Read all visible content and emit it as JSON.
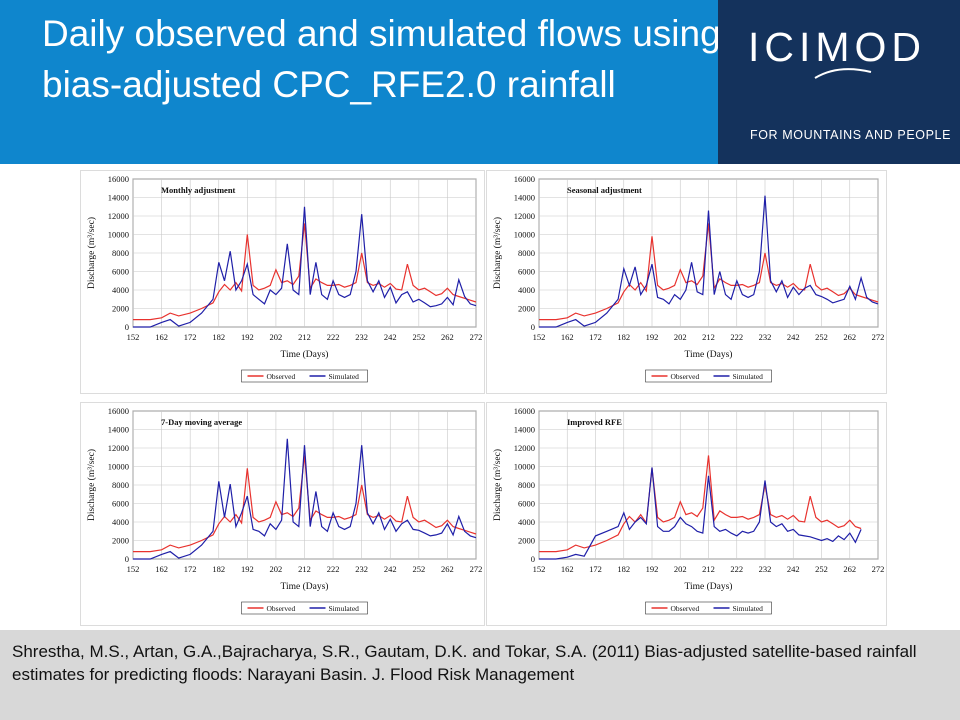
{
  "header": {
    "title": "Daily observed and simulated flows using bias-adjusted CPC_RFE2.0 rainfall"
  },
  "logo": {
    "wordmark": "ICIMOD",
    "tagline": "FOR MOUNTAINS AND PEOPLE"
  },
  "footer": {
    "citation": "Shrestha, M.S., Artan, G.A.,Bajracharya, S.R., Gautam, D.K. and Tokar, S.A. (2011) Bias-adjusted satellite-based rainfall estimates for predicting floods: Narayani Basin. J. Flood Risk Management"
  },
  "colors": {
    "header_bg": "#0f86cd",
    "logo_bg": "#14325c",
    "observed": "#e8322e",
    "simulated": "#1f1fa8"
  },
  "chart_data": [
    {
      "type": "line",
      "title": "Monthly adjustment",
      "xlabel": "Time (Days)",
      "ylabel": "Discharge (m³/sec)",
      "xlim": [
        152,
        272
      ],
      "ylim": [
        0,
        16000
      ],
      "xticks": [
        152,
        162,
        172,
        182,
        192,
        202,
        212,
        222,
        232,
        242,
        252,
        262,
        272
      ],
      "yticks": [
        0,
        2000,
        4000,
        6000,
        8000,
        10000,
        12000,
        14000,
        16000
      ],
      "grid": true,
      "legend": "bottom",
      "series": [
        {
          "name": "Observed",
          "color": "#e8322e",
          "x": [
            152,
            158,
            162,
            165,
            168,
            172,
            176,
            180,
            182,
            184,
            186,
            188,
            190,
            192,
            194,
            196,
            198,
            200,
            202,
            204,
            206,
            208,
            210,
            212,
            214,
            216,
            218,
            220,
            222,
            224,
            226,
            228,
            230,
            232,
            234,
            236,
            238,
            240,
            242,
            244,
            246,
            248,
            250,
            252,
            254,
            256,
            258,
            260,
            262,
            264,
            266,
            268,
            270,
            272
          ],
          "y": [
            800,
            800,
            1000,
            1500,
            1200,
            1500,
            2000,
            2600,
            3800,
            4600,
            4000,
            4800,
            3900,
            10000,
            4500,
            4000,
            4200,
            4500,
            6200,
            4800,
            5000,
            4600,
            5500,
            11200,
            4200,
            5200,
            4800,
            4500,
            4500,
            4600,
            4300,
            4500,
            4800,
            8000,
            4800,
            4500,
            4700,
            4300,
            4700,
            4100,
            4000,
            6800,
            4500,
            4000,
            4200,
            3800,
            3400,
            3600,
            4200,
            3500,
            3300,
            3100,
            2900,
            2700
          ]
        },
        {
          "name": "Simulated",
          "color": "#1f1fa8",
          "x": [
            152,
            158,
            162,
            165,
            168,
            172,
            176,
            180,
            182,
            184,
            186,
            188,
            190,
            192,
            194,
            196,
            198,
            200,
            202,
            204,
            206,
            208,
            210,
            212,
            214,
            216,
            218,
            220,
            222,
            224,
            226,
            228,
            230,
            232,
            234,
            236,
            238,
            240,
            242,
            244,
            246,
            248,
            250,
            252,
            254,
            256,
            258,
            260,
            262,
            264,
            266,
            268,
            270,
            272
          ],
          "y": [
            0,
            0,
            500,
            800,
            100,
            500,
            1500,
            3000,
            7000,
            5000,
            8200,
            4000,
            5000,
            6800,
            3500,
            3000,
            2500,
            4000,
            3500,
            4200,
            9000,
            4000,
            3500,
            13000,
            3500,
            7000,
            3500,
            3000,
            5000,
            3500,
            3200,
            3500,
            6000,
            12200,
            5000,
            3800,
            5000,
            3200,
            4300,
            2600,
            3500,
            3800,
            2700,
            3000,
            2600,
            2200,
            2300,
            2500,
            3200,
            2400,
            5100,
            3300,
            2500,
            2300
          ]
        }
      ]
    },
    {
      "type": "line",
      "title": "Seasonal adjustment",
      "xlabel": "Time (Days)",
      "ylabel": "Discharge (m³/sec)",
      "xlim": [
        152,
        272
      ],
      "ylim": [
        0,
        16000
      ],
      "xticks": [
        152,
        162,
        172,
        182,
        192,
        202,
        212,
        222,
        232,
        242,
        252,
        262,
        272
      ],
      "yticks": [
        0,
        2000,
        4000,
        6000,
        8000,
        10000,
        12000,
        14000,
        16000
      ],
      "grid": true,
      "legend": "bottom",
      "series": [
        {
          "name": "Observed",
          "color": "#e8322e",
          "x": [
            152,
            158,
            162,
            165,
            168,
            172,
            176,
            180,
            182,
            184,
            186,
            188,
            190,
            192,
            194,
            196,
            198,
            200,
            202,
            204,
            206,
            208,
            210,
            212,
            214,
            216,
            218,
            220,
            222,
            224,
            226,
            228,
            230,
            232,
            234,
            236,
            238,
            240,
            242,
            244,
            246,
            248,
            250,
            252,
            254,
            256,
            258,
            260,
            262,
            264,
            266,
            268,
            270,
            272
          ],
          "y": [
            800,
            800,
            1000,
            1500,
            1200,
            1500,
            2000,
            2600,
            3800,
            4600,
            4000,
            4800,
            3900,
            9800,
            4500,
            4000,
            4200,
            4500,
            6200,
            4800,
            5000,
            4600,
            5500,
            11200,
            4200,
            5200,
            4800,
            4500,
            4500,
            4600,
            4300,
            4500,
            4800,
            8000,
            4800,
            4500,
            4700,
            4300,
            4700,
            4100,
            4000,
            6800,
            4500,
            4000,
            4200,
            3800,
            3400,
            3600,
            4200,
            3500,
            3300,
            3100,
            2900,
            2700
          ]
        },
        {
          "name": "Simulated",
          "color": "#1f1fa8",
          "x": [
            152,
            158,
            162,
            165,
            168,
            172,
            176,
            180,
            182,
            184,
            186,
            188,
            190,
            192,
            194,
            196,
            198,
            200,
            202,
            204,
            206,
            208,
            210,
            212,
            214,
            216,
            218,
            220,
            222,
            224,
            226,
            228,
            230,
            232,
            234,
            236,
            238,
            240,
            242,
            244,
            246,
            248,
            250,
            252,
            254,
            256,
            258,
            260,
            262,
            264,
            266,
            268,
            270,
            272
          ],
          "y": [
            0,
            0,
            500,
            800,
            100,
            500,
            1500,
            3000,
            6300,
            4500,
            6500,
            3500,
            4500,
            6800,
            3200,
            3000,
            2500,
            3500,
            3000,
            4000,
            7000,
            3800,
            3500,
            12600,
            3500,
            6000,
            3500,
            3000,
            5000,
            3500,
            3200,
            3500,
            6000,
            14200,
            5000,
            3800,
            5000,
            3200,
            4300,
            3500,
            4200,
            4500,
            3500,
            3300,
            3000,
            2600,
            2800,
            3000,
            4400,
            3000,
            5300,
            3200,
            2700,
            2500
          ]
        }
      ]
    },
    {
      "type": "line",
      "title": "7-Day moving average",
      "xlabel": "Time (Days)",
      "ylabel": "Discharge (m³/sec)",
      "xlim": [
        152,
        272
      ],
      "ylim": [
        0,
        16000
      ],
      "xticks": [
        152,
        162,
        172,
        182,
        192,
        202,
        212,
        222,
        232,
        242,
        252,
        262,
        272
      ],
      "yticks": [
        0,
        2000,
        4000,
        6000,
        8000,
        10000,
        12000,
        14000,
        16000
      ],
      "grid": true,
      "legend": "bottom",
      "series": [
        {
          "name": "Observed",
          "color": "#e8322e",
          "x": [
            152,
            158,
            162,
            165,
            168,
            172,
            176,
            180,
            182,
            184,
            186,
            188,
            190,
            192,
            194,
            196,
            198,
            200,
            202,
            204,
            206,
            208,
            210,
            212,
            214,
            216,
            218,
            220,
            222,
            224,
            226,
            228,
            230,
            232,
            234,
            236,
            238,
            240,
            242,
            244,
            246,
            248,
            250,
            252,
            254,
            256,
            258,
            260,
            262,
            264,
            266,
            268,
            270,
            272
          ],
          "y": [
            800,
            800,
            1000,
            1500,
            1200,
            1500,
            2000,
            2600,
            3800,
            4600,
            4000,
            4800,
            3900,
            9800,
            4500,
            4000,
            4200,
            4500,
            6200,
            4800,
            5000,
            4600,
            5500,
            11200,
            4200,
            5200,
            4800,
            4500,
            4500,
            4600,
            4300,
            4500,
            4800,
            8000,
            4800,
            4500,
            4700,
            4300,
            4700,
            4100,
            4000,
            6800,
            4500,
            4000,
            4200,
            3800,
            3400,
            3600,
            4200,
            3500,
            3300,
            3100,
            2900,
            2700
          ]
        },
        {
          "name": "Simulated",
          "color": "#1f1fa8",
          "x": [
            152,
            158,
            162,
            165,
            168,
            172,
            176,
            180,
            182,
            184,
            186,
            188,
            190,
            192,
            194,
            196,
            198,
            200,
            202,
            204,
            206,
            208,
            210,
            212,
            214,
            216,
            218,
            220,
            222,
            224,
            226,
            228,
            230,
            232,
            234,
            236,
            238,
            240,
            242,
            244,
            246,
            248,
            250,
            252,
            254,
            256,
            258,
            260,
            262,
            264,
            266,
            268,
            270,
            272
          ],
          "y": [
            0,
            0,
            500,
            800,
            100,
            500,
            1500,
            3000,
            8400,
            4500,
            8100,
            3500,
            5000,
            6800,
            3200,
            3000,
            2500,
            3800,
            3200,
            4200,
            13000,
            4000,
            3500,
            12300,
            3500,
            7300,
            3500,
            3000,
            5000,
            3500,
            3200,
            3500,
            6000,
            12300,
            5000,
            3800,
            5000,
            3200,
            4300,
            3000,
            3800,
            4200,
            3200,
            3100,
            2800,
            2500,
            2600,
            2800,
            3800,
            2600,
            4600,
            3000,
            2500,
            2300
          ]
        }
      ]
    },
    {
      "type": "line",
      "title": "Improved RFE",
      "xlabel": "Time (Days)",
      "ylabel": "Discharge (m³/sec)",
      "xlim": [
        152,
        272
      ],
      "ylim": [
        0,
        16000
      ],
      "xticks": [
        152,
        162,
        172,
        182,
        192,
        202,
        212,
        222,
        232,
        242,
        252,
        262,
        272
      ],
      "yticks": [
        0,
        2000,
        4000,
        6000,
        8000,
        10000,
        12000,
        14000,
        16000
      ],
      "grid": true,
      "legend": "bottom",
      "series": [
        {
          "name": "Observed",
          "color": "#e8322e",
          "x": [
            152,
            158,
            162,
            165,
            168,
            172,
            176,
            180,
            182,
            184,
            186,
            188,
            190,
            192,
            194,
            196,
            198,
            200,
            202,
            204,
            206,
            208,
            210,
            212,
            214,
            216,
            218,
            220,
            222,
            224,
            226,
            228,
            230,
            232,
            234,
            236,
            238,
            240,
            242,
            244,
            246,
            248,
            250,
            252,
            254,
            256,
            258,
            260,
            262,
            264,
            266
          ],
          "y": [
            800,
            800,
            1000,
            1500,
            1200,
            1500,
            2000,
            2600,
            3800,
            4600,
            4000,
            4800,
            3900,
            9800,
            4500,
            4000,
            4200,
            4500,
            6200,
            4800,
            5000,
            4600,
            5500,
            11200,
            4200,
            5200,
            4800,
            4500,
            4500,
            4600,
            4300,
            4500,
            4800,
            8000,
            4800,
            4500,
            4700,
            4300,
            4700,
            4100,
            4000,
            6800,
            4500,
            4000,
            4200,
            3800,
            3400,
            3600,
            4200,
            3500,
            3300
          ]
        },
        {
          "name": "Simulated",
          "color": "#1f1fa8",
          "x": [
            152,
            158,
            162,
            165,
            168,
            172,
            176,
            180,
            182,
            184,
            186,
            188,
            190,
            192,
            194,
            196,
            198,
            200,
            202,
            204,
            206,
            208,
            210,
            212,
            214,
            216,
            218,
            220,
            222,
            224,
            226,
            228,
            230,
            232,
            234,
            236,
            238,
            240,
            242,
            244,
            246,
            248,
            250,
            252,
            254,
            256,
            258,
            260,
            262,
            264,
            266
          ],
          "y": [
            0,
            0,
            200,
            500,
            300,
            2500,
            3000,
            3500,
            5000,
            3200,
            4000,
            4500,
            3800,
            9900,
            3500,
            3000,
            3000,
            3500,
            4500,
            3800,
            3500,
            3000,
            2800,
            9000,
            3500,
            3000,
            3200,
            2800,
            2500,
            3000,
            2800,
            3000,
            4000,
            8500,
            4000,
            3500,
            3800,
            3000,
            3200,
            2600,
            2500,
            2400,
            2200,
            2000,
            2200,
            1900,
            2500,
            2100,
            2800,
            1800,
            3200
          ]
        }
      ]
    }
  ]
}
